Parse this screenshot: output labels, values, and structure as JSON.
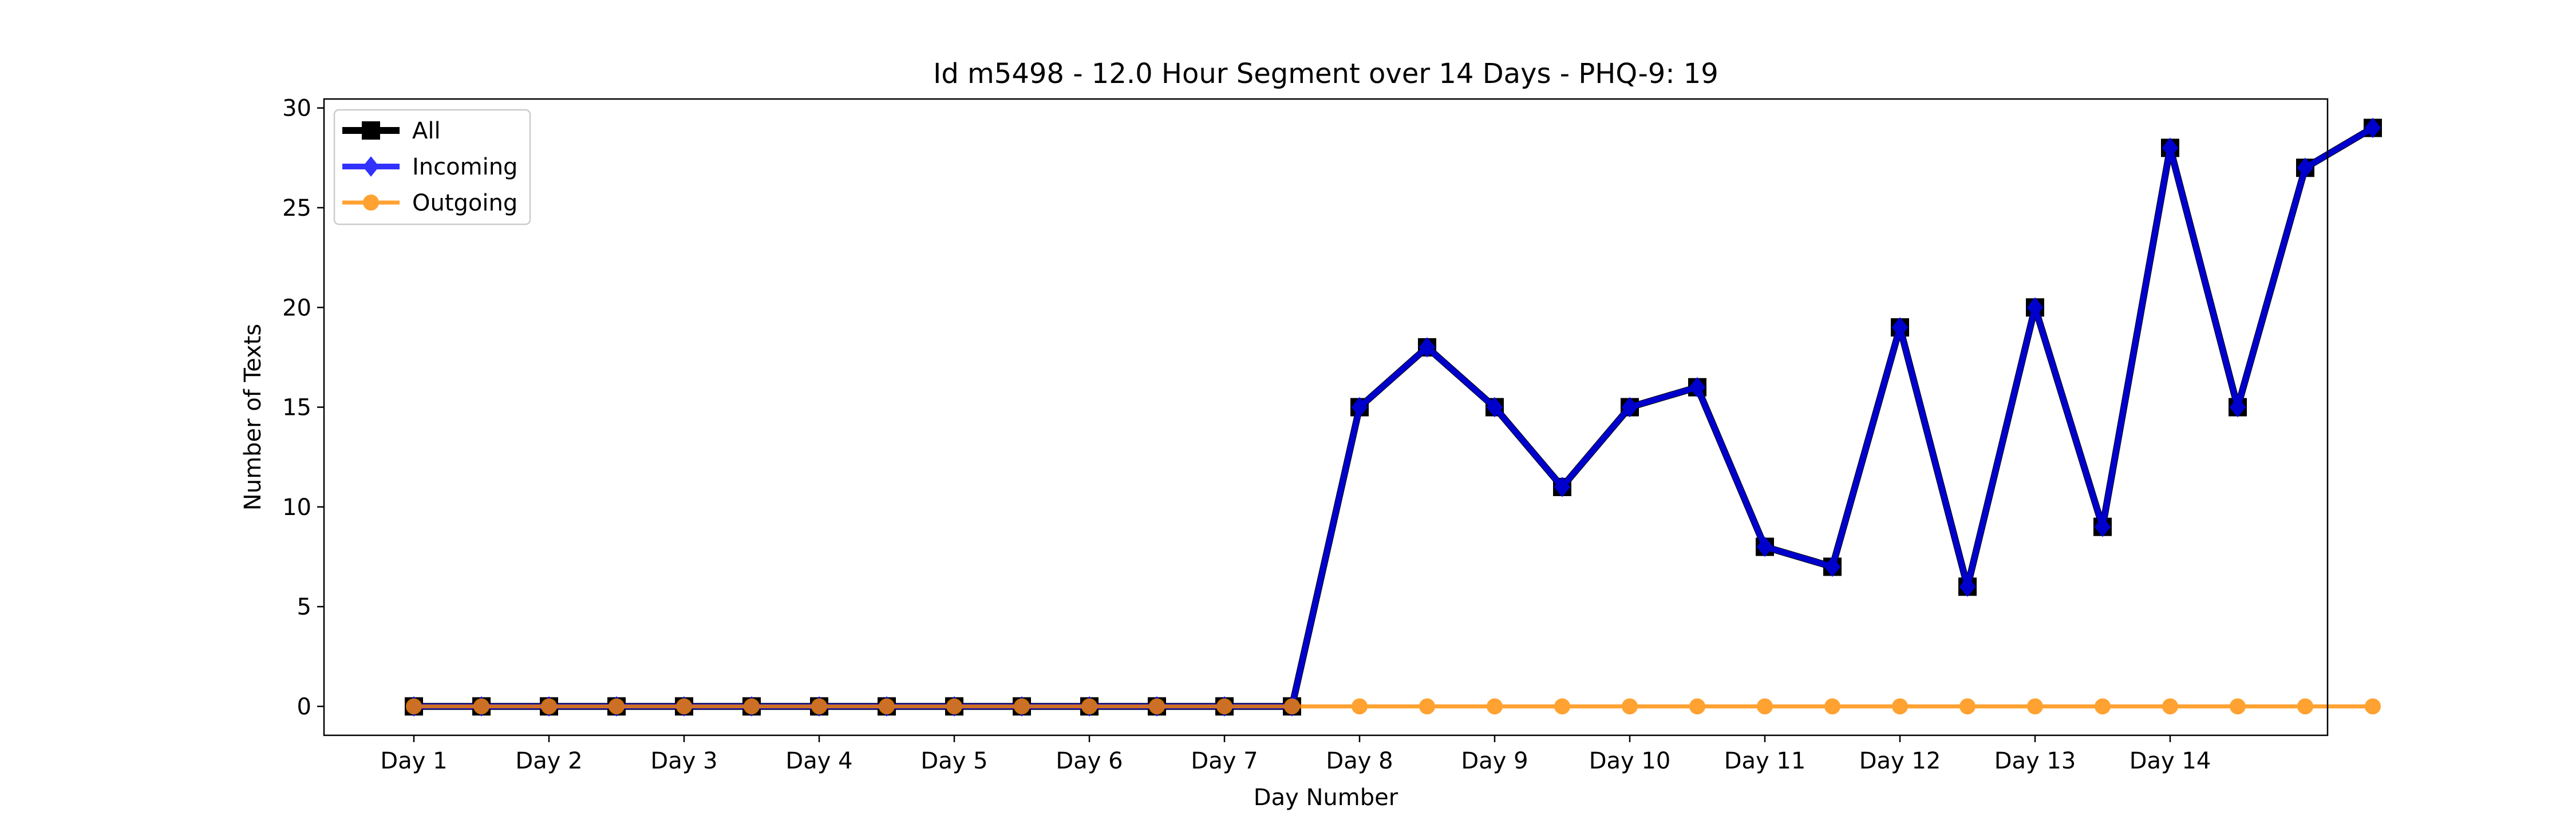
{
  "chart_data": {
    "type": "line",
    "title": "Id m5498 - 12.0 Hour Segment over 14 Days - PHQ-9: 19",
    "xlabel": "Day Number",
    "ylabel": "Number of Texts",
    "ylim": [
      -1.45,
      30.45
    ],
    "yticks": [
      0,
      5,
      10,
      15,
      20,
      25,
      30
    ],
    "x_tick_labels": [
      "Day 1",
      "Day 2",
      "Day 3",
      "Day 4",
      "Day 5",
      "Day 6",
      "Day 7",
      "Day 8",
      "Day 9",
      "Day 10",
      "Day 11",
      "Day 12",
      "Day 13",
      "Day 14"
    ],
    "grid": false,
    "legend_position": "upper-left",
    "series": [
      {
        "name": "All",
        "color": "#000000",
        "marker": "square",
        "values": [
          0,
          0,
          0,
          0,
          0,
          0,
          0,
          0,
          0,
          0,
          0,
          0,
          0,
          0,
          15,
          18,
          15,
          11,
          15,
          16,
          8,
          7,
          19,
          6,
          20,
          9,
          28,
          15,
          27,
          29
        ]
      },
      {
        "name": "Incoming",
        "color": "#0000ff",
        "marker": "diamond",
        "values": [
          0,
          0,
          0,
          0,
          0,
          0,
          0,
          0,
          0,
          0,
          0,
          0,
          0,
          0,
          15,
          18,
          15,
          11,
          15,
          16,
          8,
          7,
          19,
          6,
          20,
          9,
          28,
          15,
          27,
          29
        ]
      },
      {
        "name": "Outgoing",
        "color": "#ff8c00",
        "marker": "circle",
        "values": [
          0,
          0,
          0,
          0,
          0,
          0,
          0,
          0,
          0,
          0,
          0,
          0,
          0,
          0,
          0,
          0,
          0,
          0,
          0,
          0,
          0,
          0,
          0,
          0,
          0,
          0,
          0,
          0,
          0,
          0
        ]
      }
    ]
  }
}
